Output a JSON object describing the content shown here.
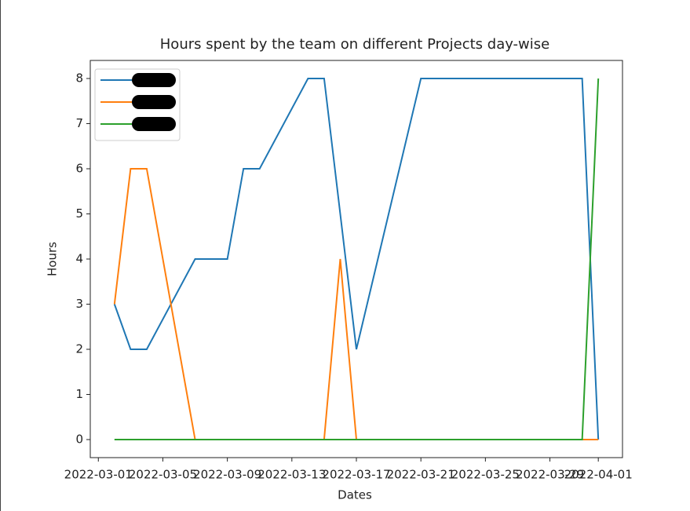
{
  "chart_data": {
    "type": "line",
    "title": "Hours spent by the team on different Projects day-wise",
    "x_label": "Dates",
    "y_label": "Hours",
    "series": [
      {
        "color": "#1f77b4",
        "x": [
          "2022-03-02",
          "2022-03-03",
          "2022-03-04",
          "2022-03-07",
          "2022-03-09",
          "2022-03-10",
          "2022-03-11",
          "2022-03-14",
          "2022-03-15",
          "2022-03-17",
          "2022-03-21",
          "2022-03-31",
          "2022-04-01"
        ],
        "values": [
          3,
          2,
          2,
          4,
          4,
          6,
          6,
          8,
          8,
          2,
          8,
          8,
          0
        ]
      },
      {
        "color": "#ff7f0e",
        "x": [
          "2022-03-02",
          "2022-03-03",
          "2022-03-04",
          "2022-03-07",
          "2022-03-15",
          "2022-03-16",
          "2022-03-17",
          "2022-03-31",
          "2022-04-01"
        ],
        "values": [
          3,
          6,
          6,
          0,
          0,
          4,
          0,
          0,
          0
        ]
      },
      {
        "color": "#2ca02c",
        "x": [
          "2022-03-02",
          "2022-03-31",
          "2022-04-01"
        ],
        "values": [
          0,
          0,
          8
        ]
      }
    ],
    "xlim": [
      "2022-02-28T12:00",
      "2022-04-02T12:00"
    ],
    "xticks": [
      "2022-03-01",
      "2022-03-05",
      "2022-03-09",
      "2022-03-13",
      "2022-03-17",
      "2022-03-21",
      "2022-03-25",
      "2022-03-29",
      "2022-04-01"
    ],
    "ylim": [
      -0.4,
      8.4
    ],
    "yticks": [
      0,
      1,
      2,
      3,
      4,
      5,
      6,
      7,
      8
    ],
    "legend": "upper left"
  }
}
